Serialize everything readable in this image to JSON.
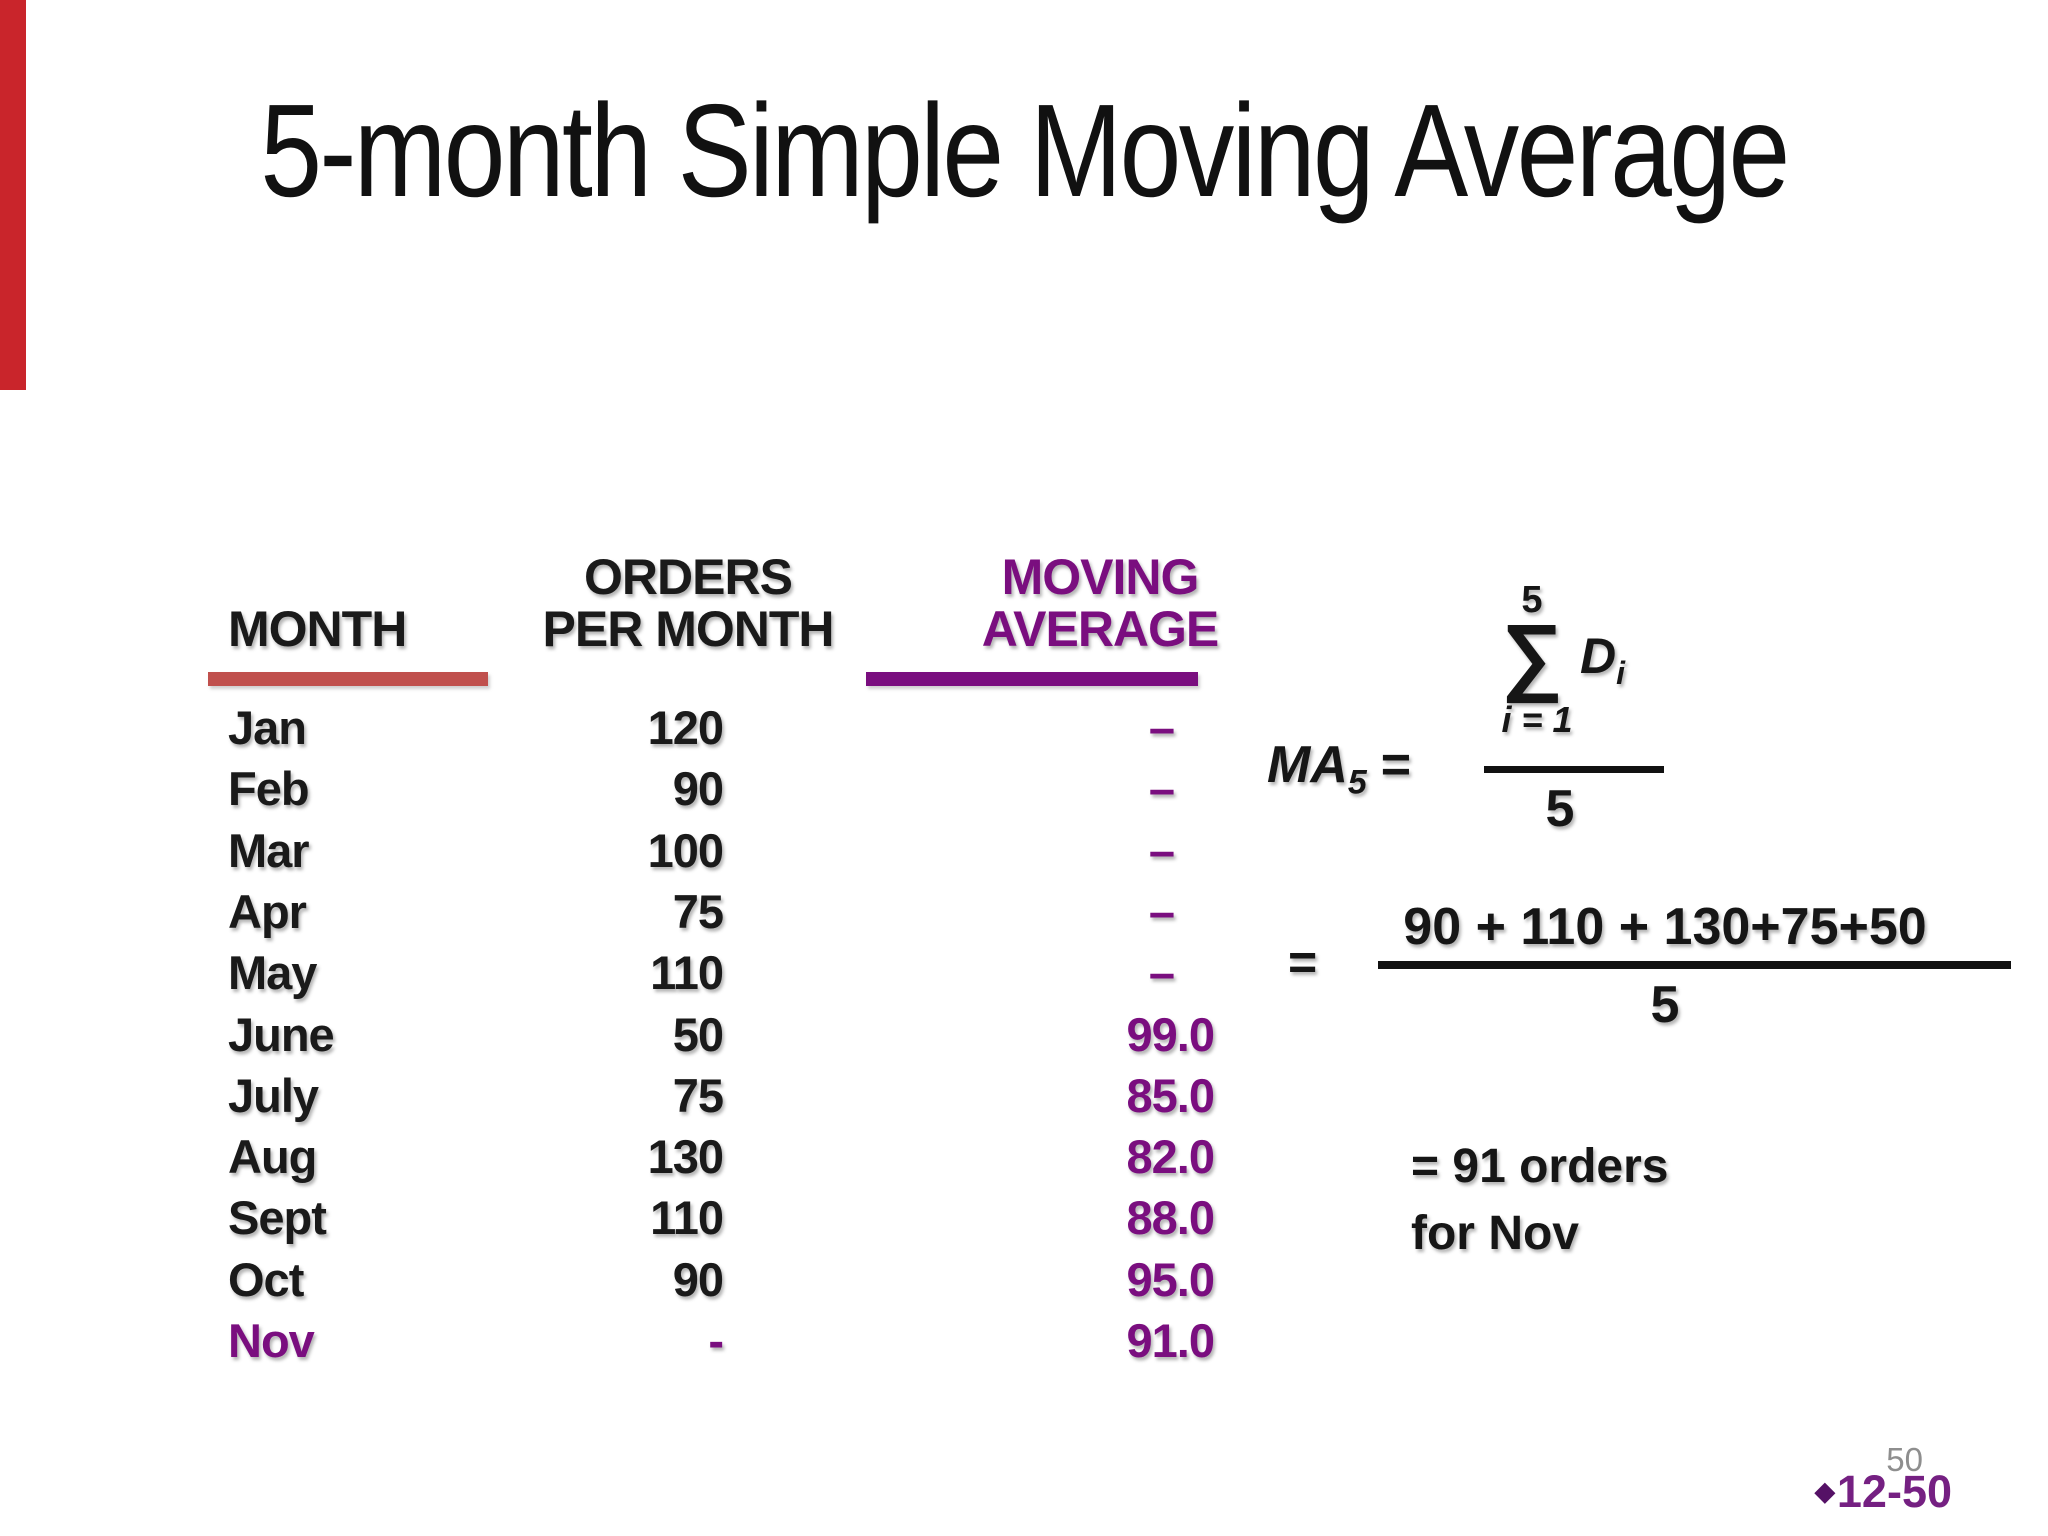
{
  "slide": {
    "title": "5-month Simple Moving Average",
    "page_number": "50",
    "footer": {
      "bullet": "◆",
      "label": "12-50"
    }
  },
  "colors": {
    "accent_purple": "#7a0e7f",
    "underline_red": "#c0504d",
    "left_bar_red": "#c9252b",
    "footer_purple": "#752082",
    "page_number_gray": "#8e8e8e",
    "text_black": "#1a1a1a"
  },
  "table": {
    "headers": {
      "month": "MONTH",
      "orders_line1": "ORDERS",
      "orders_line2": "PER MONTH",
      "ma_line1": "MOVING",
      "ma_line2": "AVERAGE"
    },
    "rows": [
      {
        "month": "Jan",
        "orders": "120",
        "ma": "–"
      },
      {
        "month": "Feb",
        "orders": "90",
        "ma": "–"
      },
      {
        "month": "Mar",
        "orders": "100",
        "ma": "–"
      },
      {
        "month": "Apr",
        "orders": "75",
        "ma": "–"
      },
      {
        "month": "May",
        "orders": "110",
        "ma": "–"
      },
      {
        "month": "June",
        "orders": "50",
        "ma": "99.0"
      },
      {
        "month": "July",
        "orders": "75",
        "ma": "85.0"
      },
      {
        "month": "Aug",
        "orders": "130",
        "ma": "82.0"
      },
      {
        "month": "Sept",
        "orders": "110",
        "ma": "88.0"
      },
      {
        "month": "Oct",
        "orders": "90",
        "ma": "95.0"
      },
      {
        "month": "Nov",
        "orders": "-",
        "ma": "91.0",
        "highlight": true
      }
    ]
  },
  "formula": {
    "lhs": "MA",
    "lhs_sub": "5",
    "equals": "=",
    "sigma_upper": "5",
    "sigma": "∑",
    "sigma_lower": "i = 1",
    "term": "D",
    "term_sub": "i",
    "denominator": "5",
    "eq2_equals": "=",
    "eq2_numerator": "90 + 110 + 130+75+50",
    "eq2_denominator": "5",
    "result_line1": "= 91 orders",
    "result_line2": "for Nov"
  }
}
